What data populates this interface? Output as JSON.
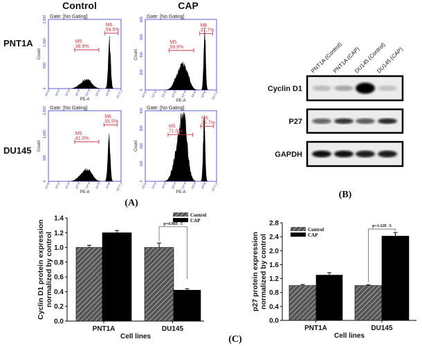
{
  "panel_a": {
    "label": "(A)",
    "column_headers": [
      "Control",
      "CAP"
    ],
    "row_labels": [
      "PNT1A",
      "DU145"
    ],
    "histograms": [
      {
        "row": "PNT1A",
        "condition": "Control",
        "gate": "Gate: [No Gating]",
        "y_axis_label": "Count",
        "x_axis_label": "PE-A",
        "y_ticks": [
          "0",
          "500",
          "1,000",
          "1,500"
        ],
        "x_ticks": [
          "10^0",
          "10^1",
          "10^2",
          "10^3",
          "10^4",
          "10^5",
          "10^6",
          "10^7.2"
        ],
        "markers": [
          {
            "name": "M5",
            "percent": "38.9%"
          },
          {
            "name": "M6",
            "percent": "59.5%"
          }
        ]
      },
      {
        "row": "PNT1A",
        "condition": "CAP",
        "gate": "Gate: [No Gating]",
        "y_axis_label": "Count",
        "x_axis_label": "PE-A",
        "y_ticks": [
          "0",
          "200",
          "400",
          "600",
          "800"
        ],
        "x_ticks": [
          "10^0",
          "10^1",
          "10^2",
          "10^3",
          "10^4",
          "10^5",
          "10^6",
          "10^7.2"
        ],
        "markers": [
          {
            "name": "M5",
            "percent": "59.9%"
          },
          {
            "name": "M6",
            "percent": "37.7%"
          }
        ]
      },
      {
        "row": "DU145",
        "condition": "Control",
        "gate": "Gate: [No Gating]",
        "y_axis_label": "Count",
        "x_axis_label": "PE-A",
        "y_ticks": [
          "0",
          "500",
          "1,000",
          "1,500"
        ],
        "x_ticks": [
          "10^0",
          "10^1",
          "10^2",
          "10^3",
          "10^4",
          "10^5",
          "10^6",
          "10^7.2"
        ],
        "markers": [
          {
            "name": "M5",
            "percent": "41.0%"
          },
          {
            "name": "M6",
            "percent": "55.5%"
          }
        ]
      },
      {
        "row": "DU145",
        "condition": "CAP",
        "gate": "Gate: [No Gating]",
        "y_axis_label": "Count",
        "x_axis_label": "PE-A",
        "y_ticks": [
          "0",
          "100",
          "200",
          "300",
          "400"
        ],
        "x_ticks": [
          "10^0",
          "10^1",
          "10^2",
          "10^3",
          "10^4",
          "10^5",
          "10^6",
          "10^7.2"
        ],
        "markers": [
          {
            "name": "M5",
            "percent": "71.0%"
          },
          {
            "name": "M6",
            "percent": "25.7%"
          }
        ]
      }
    ]
  },
  "panel_b": {
    "label": "(B)",
    "lanes": [
      "PNT1A (Control)",
      "PNT1A (CAP)",
      "DU145 (Control)",
      "DU145 (CAP)"
    ],
    "blots": [
      {
        "protein": "Cyclin D1",
        "band_intensity": [
          0.15,
          0.25,
          1.0,
          0.12
        ]
      },
      {
        "protein": "P27",
        "band_intensity": [
          0.55,
          0.8,
          0.6,
          0.85
        ]
      },
      {
        "protein": "GAPDH",
        "band_intensity": [
          0.95,
          0.95,
          0.9,
          0.9
        ]
      }
    ]
  },
  "panel_c": {
    "label": "(C)"
  },
  "colors": {
    "control_fill": "#555555",
    "cap_fill": "#000000",
    "histogram_axis": "#3333cc",
    "marker": "#cc3344"
  },
  "chart_data": [
    {
      "type": "bar",
      "categories": [
        "PNT1A",
        "DU145"
      ],
      "series": [
        {
          "name": "Control",
          "values": [
            1.0,
            1.0
          ],
          "errors": [
            0.03,
            0.06
          ]
        },
        {
          "name": "CAP",
          "values": [
            1.2,
            0.42
          ],
          "errors": [
            0.03,
            0.02
          ]
        }
      ],
      "xlabel": "Cell lines",
      "ylabel": "Cyclin D1 protein expression normalized by control",
      "ylim": [
        0,
        1.4
      ],
      "y_ticks": [
        "0.0",
        "0.2",
        "0.4",
        "0.6",
        "0.8",
        "1.0",
        "1.2",
        "1.4"
      ],
      "legend": "top-right",
      "annotation": "p=4.96E -5"
    },
    {
      "type": "bar",
      "categories": [
        "PNT1A",
        "DU145"
      ],
      "series": [
        {
          "name": "Control",
          "values": [
            1.0,
            1.0
          ],
          "errors": [
            0.03,
            0.02
          ]
        },
        {
          "name": "CAP",
          "values": [
            1.3,
            2.42
          ],
          "errors": [
            0.07,
            0.1
          ]
        }
      ],
      "legend_labels": [
        "Control",
        "CAP"
      ],
      "xlabel": "Cell lines",
      "ylabel": "p27 protein expression normalized by control",
      "ylim": [
        0,
        2.8
      ],
      "y_ticks": [
        "0.0",
        "0.4",
        "0.8",
        "1.2",
        "1.6",
        "2.0",
        "2.4",
        "2.8"
      ],
      "legend": "top-left",
      "annotation": "p=1.32E -5"
    }
  ]
}
